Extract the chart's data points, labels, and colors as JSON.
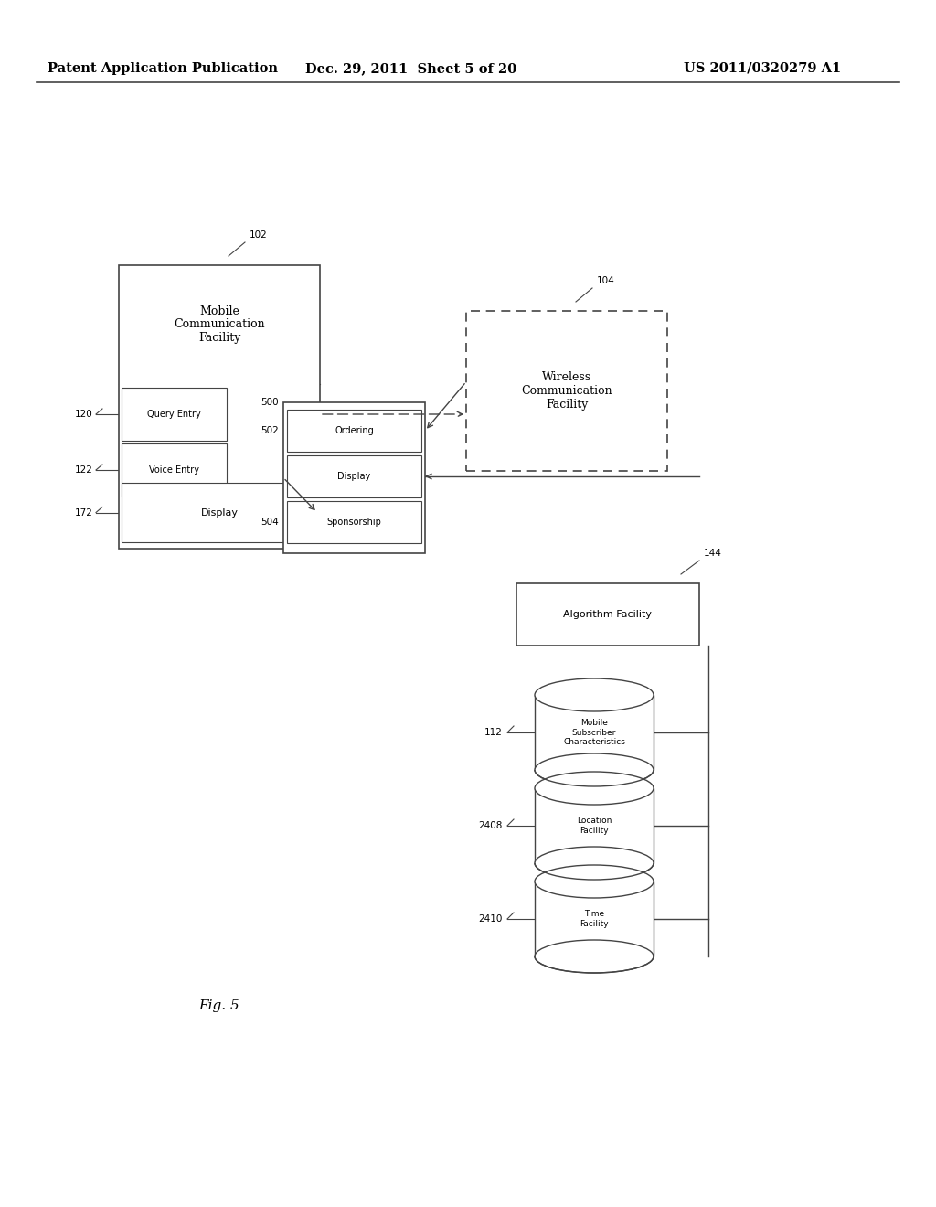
{
  "header_left": "Patent Application Publication",
  "header_mid": "Dec. 29, 2011  Sheet 5 of 20",
  "header_right": "US 2011/0320279 A1",
  "fig_label": "Fig. 5",
  "bg_color": "#ffffff",
  "line_color": "#444444",
  "font_size_header": 10.5,
  "font_size_label": 8,
  "font_size_ref": 7.5,
  "font_size_fig": 11
}
